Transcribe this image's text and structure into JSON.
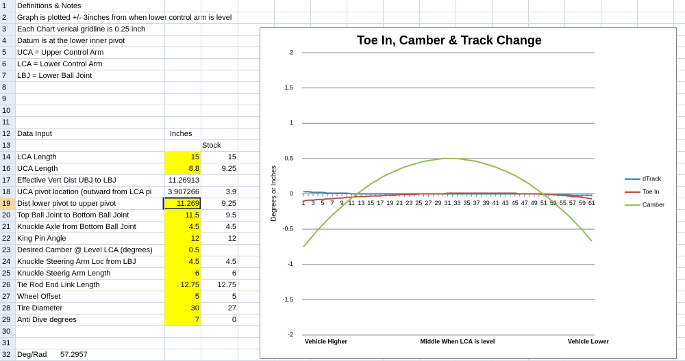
{
  "sheet": {
    "rows": [
      {
        "num": 1,
        "label": "Definitions & Notes"
      },
      {
        "num": 2,
        "label": "Graph is plotted +/- 3inches from when lower control arm is level"
      },
      {
        "num": 3,
        "label": "Each Chart verical gridline is 0.25 inch"
      },
      {
        "num": 4,
        "label": "Datum is at the lower inner pivot"
      },
      {
        "num": 5,
        "label": "UCA = Upper Control Arm"
      },
      {
        "num": 6,
        "label": "LCA = Lower Control Arm"
      },
      {
        "num": 7,
        "label": "LBJ = Lower Ball Joint"
      },
      {
        "num": 8
      },
      {
        "num": 9
      },
      {
        "num": 10
      },
      {
        "num": 11
      },
      {
        "num": 12,
        "label": "Data Input",
        "input": "Inches"
      },
      {
        "num": 13,
        "stock": "Stock"
      },
      {
        "num": 14,
        "label": "LCA Length",
        "input": 15,
        "stock": 15,
        "highlight": true
      },
      {
        "num": 16,
        "label": "UCA Length",
        "input": 8.8,
        "stock": 9.25,
        "highlight": true
      },
      {
        "num": 17,
        "label": "Effective Vert Dist UBJ to LBJ",
        "input": 11.26913
      },
      {
        "num": 18,
        "label": "UCA pivot location (outward from LCA pi",
        "input": 3.907266,
        "stock": 3.9
      },
      {
        "num": 19,
        "label": "Dist lower pivot to upper pivot",
        "input": 11.269,
        "stock": 9.25,
        "highlight": true,
        "selected": true
      },
      {
        "num": 20,
        "label": "Top Ball Joint to Bottom Ball Joint",
        "input": 11.5,
        "stock": 9.5,
        "highlight": true
      },
      {
        "num": 21,
        "label": "Knuckle Axle from Bottom Ball Joint",
        "input": 4.5,
        "stock": 4.5,
        "highlight": true
      },
      {
        "num": 22,
        "label": "King Pin Angle",
        "input": 12,
        "stock": 12,
        "highlight": true
      },
      {
        "num": 23,
        "label": "Desired Camber @ Level LCA (degrees)",
        "input": 0.5,
        "highlight": true
      },
      {
        "num": 24,
        "label": "Knuckle Steering Arm Loc from LBJ",
        "input": 4.5,
        "stock": 4.5,
        "highlight": true
      },
      {
        "num": 25,
        "label": "Knuckle Steerig Arm Length",
        "input": 6,
        "stock": 6,
        "highlight": true
      },
      {
        "num": 26,
        "label": "Tie Rod End Link Length",
        "input": 12.75,
        "stock": 12.75,
        "highlight": true
      },
      {
        "num": 27,
        "label": "Wheel Offset",
        "input": 5,
        "stock": 5,
        "highlight": true
      },
      {
        "num": 28,
        "label": "Tire Diameter",
        "input": 30,
        "stock": 27,
        "highlight": true
      },
      {
        "num": 29,
        "label": "Anti Dive degrees",
        "input": 7,
        "stock": 0,
        "highlight": true
      },
      {
        "num": 30
      },
      {
        "num": 31
      },
      {
        "num": 32,
        "label": "Deg/Rad",
        "value": 57.2957
      }
    ],
    "input_fill": "#ffff00"
  },
  "chart_data": {
    "type": "line",
    "title": "Toe In, Camber & Track Change",
    "y_label": "Degrees or Inches",
    "annotations": [
      "Vehicle Higher",
      "Middle When LCA is level",
      "Vehicle Lower"
    ],
    "categories": [
      1,
      null,
      3,
      null,
      5,
      null,
      7,
      null,
      9,
      null,
      11,
      null,
      13,
      null,
      15,
      null,
      17,
      null,
      19,
      null,
      21,
      null,
      23,
      null,
      25,
      null,
      27,
      null,
      29,
      null,
      31,
      null,
      33,
      null,
      35,
      null,
      37,
      null,
      39,
      null,
      41,
      null,
      43,
      null,
      45,
      null,
      47,
      null,
      49,
      null,
      51,
      null,
      53,
      null,
      55,
      null,
      57,
      null,
      59,
      null,
      61
    ],
    "ylim": [
      -2,
      2
    ],
    "yticks": [
      -2,
      -1.5,
      -1,
      -0.5,
      0,
      0.5,
      1,
      1.5,
      2
    ],
    "grid": true,
    "legend": "right",
    "series": [
      {
        "name": "dTrack",
        "color": "#4a7ebb",
        "values": [
          0.03,
          0.03,
          0.02,
          0.02,
          0.02,
          0.01,
          0.01,
          0.01,
          0.01,
          0.01,
          0,
          0,
          0,
          0,
          0,
          0,
          0,
          0,
          0,
          0,
          0,
          0,
          0,
          0,
          0,
          0,
          0,
          0,
          0,
          0,
          0,
          0,
          0,
          0,
          0,
          0,
          0,
          0,
          0,
          0,
          0,
          0,
          0,
          0,
          0,
          0,
          0,
          0,
          0,
          0,
          -0.01,
          -0.01,
          -0.01,
          -0.01,
          -0.01,
          -0.01,
          -0.02,
          -0.02,
          -0.02,
          -0.02,
          -0.02
        ]
      },
      {
        "name": "Toe In",
        "color": "#be4b48",
        "values": [
          -0.1,
          -0.09,
          -0.09,
          -0.08,
          -0.08,
          -0.07,
          -0.07,
          -0.06,
          -0.06,
          -0.05,
          -0.05,
          -0.04,
          -0.04,
          -0.04,
          -0.03,
          -0.03,
          -0.03,
          -0.02,
          -0.02,
          -0.02,
          -0.01,
          -0.01,
          -0.01,
          -0.01,
          0,
          0,
          0,
          0,
          0,
          0,
          0.01,
          0.01,
          0.01,
          0.01,
          0.01,
          0.01,
          0.01,
          0.01,
          0.01,
          0.01,
          0.01,
          0.01,
          0.01,
          0.01,
          0.01,
          0,
          0,
          0,
          0,
          0,
          0,
          -0.01,
          -0.01,
          -0.02,
          -0.02,
          -0.03,
          -0.04,
          -0.04,
          -0.05,
          -0.06,
          -0.07
        ]
      },
      {
        "name": "Camber",
        "color": "#98b954",
        "values": [
          -0.75,
          -0.67,
          -0.59,
          -0.51,
          -0.44,
          -0.37,
          -0.3,
          -0.24,
          -0.18,
          -0.12,
          -0.06,
          -0.01,
          0.04,
          0.09,
          0.14,
          0.18,
          0.22,
          0.26,
          0.29,
          0.32,
          0.35,
          0.38,
          0.4,
          0.42,
          0.44,
          0.46,
          0.47,
          0.48,
          0.49,
          0.5,
          0.5,
          0.5,
          0.5,
          0.49,
          0.48,
          0.47,
          0.46,
          0.44,
          0.42,
          0.4,
          0.38,
          0.35,
          0.32,
          0.29,
          0.26,
          0.22,
          0.18,
          0.14,
          0.09,
          0.04,
          -0.01,
          -0.06,
          -0.12,
          -0.18,
          -0.24,
          -0.3,
          -0.37,
          -0.44,
          -0.51,
          -0.59,
          -0.67
        ]
      }
    ]
  }
}
